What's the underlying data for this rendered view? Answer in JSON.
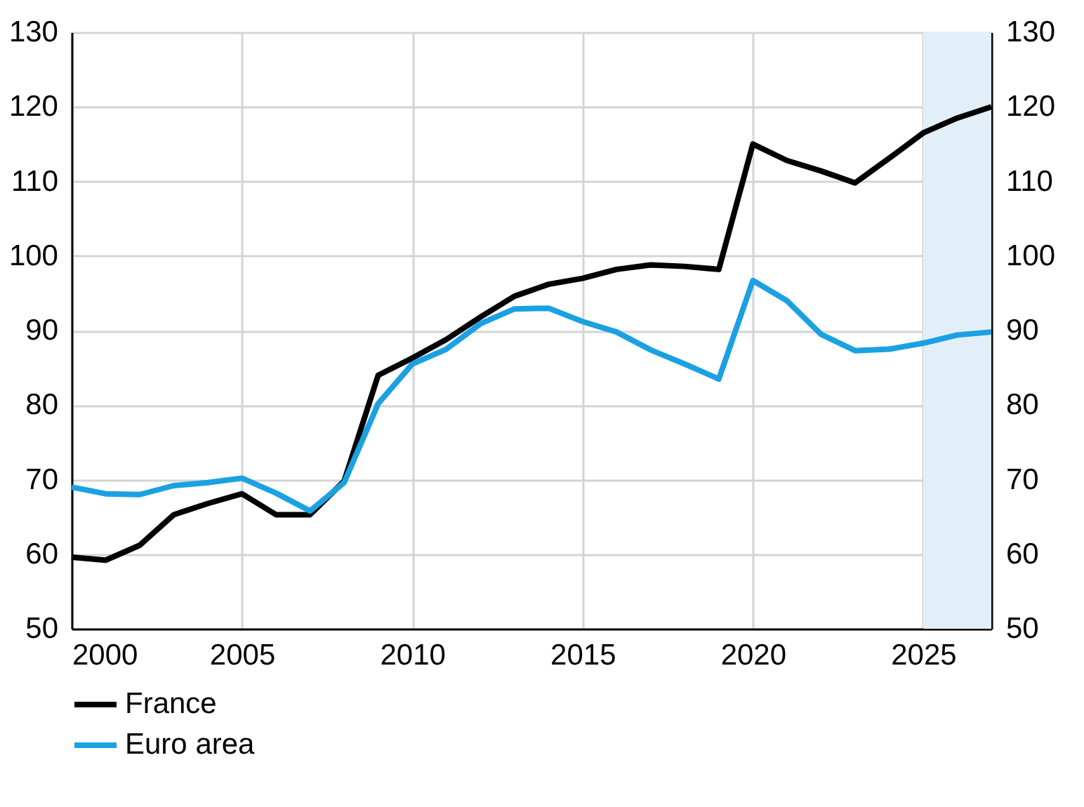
{
  "chart_data": {
    "type": "line",
    "x": [
      2000,
      2001,
      2002,
      2003,
      2004,
      2005,
      2006,
      2007,
      2008,
      2009,
      2010,
      2011,
      2012,
      2013,
      2014,
      2015,
      2016,
      2017,
      2018,
      2019,
      2020,
      2021,
      2022,
      2023,
      2024,
      2025,
      2026,
      2027
    ],
    "series": [
      {
        "name": "France",
        "color": "#000000",
        "values": [
          59.6,
          59.2,
          61.2,
          65.3,
          66.8,
          68.1,
          65.3,
          65.3,
          69.8,
          84.0,
          86.3,
          88.8,
          91.8,
          94.6,
          96.2,
          97.0,
          98.2,
          98.8,
          98.6,
          98.2,
          115.0,
          112.8,
          111.4,
          109.8,
          113.1,
          116.5,
          118.5,
          120.0
        ]
      },
      {
        "name": "Euro area",
        "color": "#1ba1e2",
        "values": [
          69.0,
          68.1,
          68.0,
          69.2,
          69.6,
          70.2,
          68.2,
          65.8,
          69.6,
          80.2,
          85.5,
          87.5,
          90.9,
          92.9,
          93.0,
          91.2,
          89.8,
          87.4,
          85.5,
          83.5,
          96.7,
          94.0,
          89.5,
          87.3,
          87.5,
          88.3,
          89.4,
          89.8
        ]
      }
    ],
    "xlim": [
      2000,
      2027
    ],
    "xticks": [
      2000,
      2005,
      2010,
      2015,
      2020,
      2025
    ],
    "ylim": [
      50,
      130
    ],
    "yticks": [
      50,
      60,
      70,
      80,
      90,
      100,
      110,
      120,
      130
    ],
    "y2lim": [
      50,
      130
    ],
    "y2ticks": [
      50,
      60,
      70,
      80,
      90,
      100,
      110,
      120,
      130
    ],
    "bands": [
      {
        "axis": "x",
        "from": 2025,
        "to": 2027,
        "color": "#e2eff9"
      }
    ],
    "grid": true,
    "legend": "bottom left",
    "marker": "none",
    "line_style": "solid"
  }
}
